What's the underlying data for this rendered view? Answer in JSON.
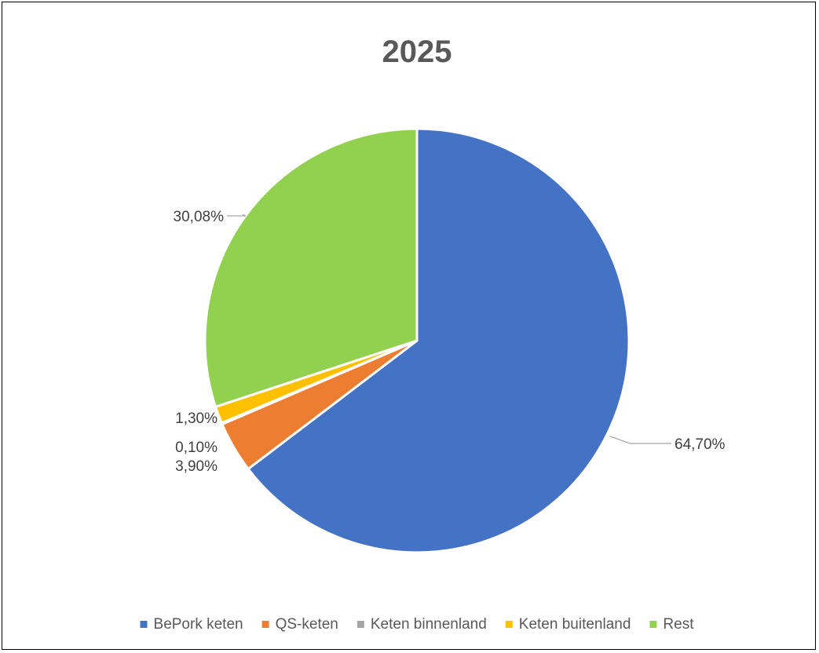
{
  "chart_data": {
    "type": "pie",
    "title": "2025",
    "slices": [
      {
        "label": "BePork keten",
        "value": 64.7,
        "display": "64,70%",
        "color": "#4472c4"
      },
      {
        "label": "QS-keten",
        "value": 3.9,
        "display": "3,90%",
        "color": "#ed7d31"
      },
      {
        "label": "Keten binnenland",
        "value": 0.1,
        "display": "0,10%",
        "color": "#a5a5a5"
      },
      {
        "label": "Keten buitenland",
        "value": 1.3,
        "display": "1,30%",
        "color": "#ffc000"
      },
      {
        "label": "Rest",
        "value": 30.08,
        "display": "30,08%",
        "color": "#92d050"
      }
    ],
    "legend_position": "bottom",
    "start_angle_deg": 0,
    "direction": "clockwise"
  }
}
